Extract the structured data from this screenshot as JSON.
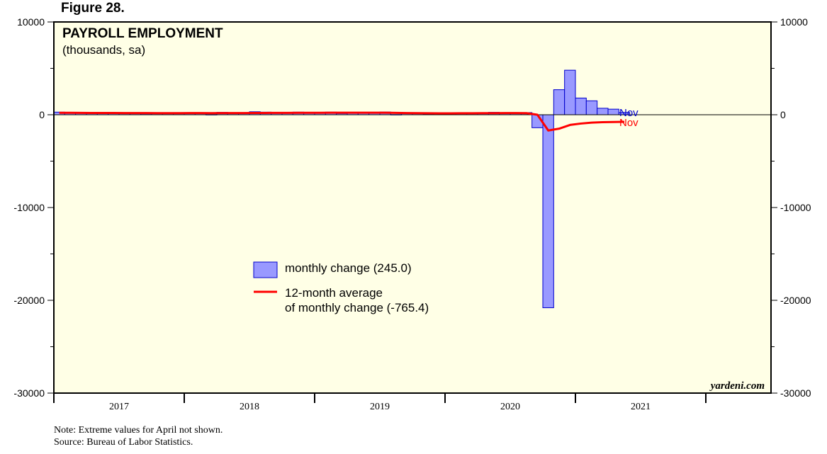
{
  "figure_label": "Figure 28.",
  "chart_data": {
    "type": "bar",
    "title": "PAYROLL EMPLOYMENT",
    "subtitle": "(thousands, sa)",
    "ylim": [
      -30000,
      10000
    ],
    "y_ticks": [
      10000,
      0,
      -10000,
      -20000,
      -30000
    ],
    "y_tick_labels": [
      "10000",
      "0",
      "-10000",
      "-20000",
      "-30000"
    ],
    "x_tick_labels": [
      "2017",
      "2018",
      "2019",
      "2020",
      "2021"
    ],
    "x_start": "2016-07",
    "x_end": "2021-12",
    "grid": false,
    "legend_position": "center-left",
    "series": [
      {
        "name": "monthly change (245.0)",
        "kind": "bar",
        "color": "#9999ff",
        "edge_color": "#0000cc",
        "x": [
          "2016-07",
          "2016-08",
          "2016-09",
          "2016-10",
          "2016-11",
          "2016-12",
          "2017-01",
          "2017-02",
          "2017-03",
          "2017-04",
          "2017-05",
          "2017-06",
          "2017-07",
          "2017-08",
          "2017-09",
          "2017-10",
          "2017-11",
          "2017-12",
          "2018-01",
          "2018-02",
          "2018-03",
          "2018-04",
          "2018-05",
          "2018-06",
          "2018-07",
          "2018-08",
          "2018-09",
          "2018-10",
          "2018-11",
          "2018-12",
          "2019-01",
          "2019-02",
          "2019-03",
          "2019-04",
          "2019-05",
          "2019-06",
          "2019-07",
          "2019-08",
          "2019-09",
          "2019-10",
          "2019-11",
          "2019-12",
          "2020-01",
          "2020-02",
          "2020-03",
          "2020-04",
          "2020-05",
          "2020-06",
          "2020-07",
          "2020-08",
          "2020-09",
          "2020-10",
          "2020-11"
        ],
        "values": [
          280,
          200,
          250,
          170,
          180,
          160,
          190,
          210,
          100,
          200,
          150,
          230,
          190,
          210,
          20,
          260,
          220,
          180,
          320,
          280,
          180,
          180,
          280,
          230,
          250,
          280,
          130,
          250,
          220,
          230,
          290,
          20,
          170,
          220,
          80,
          180,
          170,
          200,
          200,
          180,
          260,
          180,
          210,
          230,
          -1400,
          -20800,
          2700,
          4800,
          1800,
          1500,
          700,
          600,
          245
        ]
      },
      {
        "name": "12-month average",
        "name_line2": "of monthly change (-765.4)",
        "kind": "line",
        "color": "#ff0000",
        "x": [
          "2016-07",
          "2016-08",
          "2016-09",
          "2016-10",
          "2016-11",
          "2016-12",
          "2017-01",
          "2017-02",
          "2017-03",
          "2017-04",
          "2017-05",
          "2017-06",
          "2017-07",
          "2017-08",
          "2017-09",
          "2017-10",
          "2017-11",
          "2017-12",
          "2018-01",
          "2018-02",
          "2018-03",
          "2018-04",
          "2018-05",
          "2018-06",
          "2018-07",
          "2018-08",
          "2018-09",
          "2018-10",
          "2018-11",
          "2018-12",
          "2019-01",
          "2019-02",
          "2019-03",
          "2019-04",
          "2019-05",
          "2019-06",
          "2019-07",
          "2019-08",
          "2019-09",
          "2019-10",
          "2019-11",
          "2019-12",
          "2020-01",
          "2020-02",
          "2020-03",
          "2020-04",
          "2020-05",
          "2020-06",
          "2020-07",
          "2020-08",
          "2020-09",
          "2020-10",
          "2020-11"
        ],
        "values": [
          210,
          205,
          200,
          195,
          190,
          190,
          185,
          180,
          180,
          175,
          175,
          175,
          180,
          180,
          175,
          180,
          180,
          180,
          190,
          195,
          200,
          200,
          205,
          210,
          210,
          215,
          215,
          215,
          220,
          220,
          215,
          200,
          180,
          170,
          160,
          150,
          150,
          160,
          165,
          170,
          175,
          180,
          180,
          175,
          0,
          -1700,
          -1500,
          -1100,
          -950,
          -850,
          -800,
          -780,
          -765.4
        ]
      }
    ],
    "end_labels": [
      {
        "text": "Nov",
        "color": "#0000cc"
      },
      {
        "text": "Nov",
        "color": "#ff0000"
      }
    ],
    "watermark": "yardeni.com",
    "colors": {
      "plot_bg": "#ffffe6",
      "zero_line": "#000000"
    }
  },
  "notes": {
    "line1": "Note: Extreme values for April not shown.",
    "line2": "Source: Bureau of Labor Statistics."
  }
}
